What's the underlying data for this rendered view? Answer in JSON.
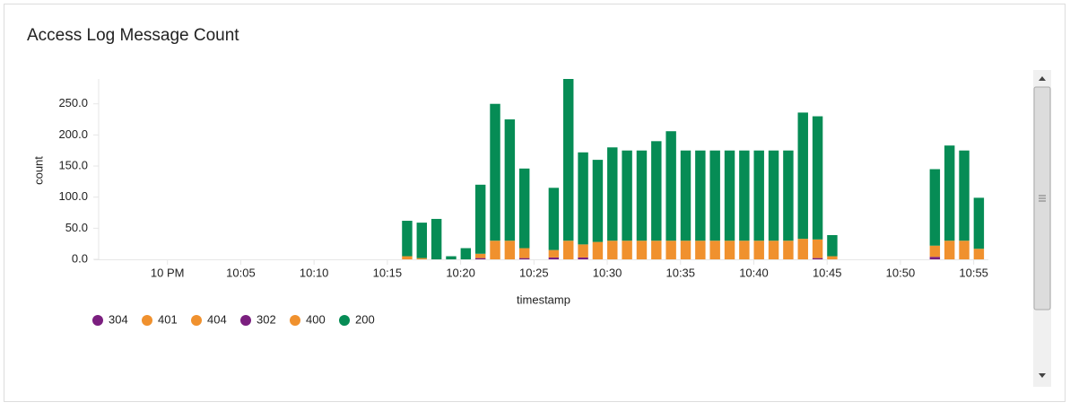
{
  "chart_data": {
    "type": "stacked-bar",
    "title": "Access Log Message Count",
    "x_label": "timestamp",
    "y_label": "count",
    "x": [
      "10:16",
      "10:17",
      "10:18",
      "10:19",
      "10:20",
      "10:21",
      "10:22",
      "10:23",
      "10:24",
      "10:26",
      "10:27",
      "10:28",
      "10:29",
      "10:30",
      "10:31",
      "10:32",
      "10:33",
      "10:34",
      "10:35",
      "10:36",
      "10:37",
      "10:38",
      "10:39",
      "10:40",
      "10:41",
      "10:42",
      "10:43",
      "10:44",
      "10:45",
      "10:52",
      "10:53",
      "10:54",
      "10:55"
    ],
    "series": [
      {
        "name": "304",
        "color": "#7b1f7f",
        "values": [
          0,
          0,
          0,
          0,
          0,
          2,
          0,
          0,
          2,
          3,
          0,
          3,
          0,
          0,
          0,
          0,
          0,
          0,
          0,
          0,
          0,
          0,
          0,
          0,
          0,
          0,
          0,
          2,
          0,
          4,
          0,
          0,
          0
        ]
      },
      {
        "name": "401",
        "color": "#f0912e",
        "values": [
          0,
          0,
          0,
          0,
          0,
          0,
          0,
          0,
          0,
          0,
          0,
          0,
          0,
          0,
          0,
          0,
          0,
          0,
          0,
          0,
          0,
          0,
          0,
          0,
          0,
          0,
          0,
          0,
          0,
          0,
          0,
          0,
          0
        ]
      },
      {
        "name": "404",
        "color": "#f0912e",
        "values": [
          0,
          0,
          0,
          0,
          0,
          0,
          0,
          0,
          0,
          0,
          0,
          0,
          0,
          0,
          0,
          0,
          0,
          0,
          0,
          0,
          0,
          0,
          0,
          0,
          0,
          0,
          0,
          0,
          0,
          0,
          0,
          0,
          0
        ]
      },
      {
        "name": "302",
        "color": "#7b1f7f",
        "values": [
          0,
          0,
          0,
          0,
          0,
          0,
          0,
          0,
          0,
          0,
          0,
          0,
          0,
          0,
          0,
          0,
          0,
          0,
          0,
          0,
          0,
          0,
          0,
          0,
          0,
          0,
          0,
          0,
          0,
          0,
          0,
          0,
          0
        ]
      },
      {
        "name": "400",
        "color": "#f0912e",
        "values": [
          5,
          2,
          0,
          0,
          0,
          7,
          30,
          30,
          16,
          12,
          30,
          21,
          28,
          30,
          30,
          30,
          30,
          30,
          30,
          30,
          30,
          30,
          30,
          30,
          30,
          30,
          33,
          30,
          5,
          18,
          30,
          30,
          17
        ]
      },
      {
        "name": "200",
        "color": "#068c55",
        "values": [
          57,
          57,
          65,
          5,
          18,
          111,
          220,
          195,
          128,
          100,
          260,
          148,
          132,
          150,
          145,
          145,
          160,
          176,
          145,
          145,
          145,
          145,
          145,
          145,
          145,
          145,
          203,
          198,
          34,
          123,
          153,
          145,
          82
        ]
      }
    ],
    "xlim": [
      "9:55",
      "10:56"
    ],
    "xticks": [
      {
        "value": "10:00",
        "label": "10 PM"
      },
      "10:05",
      "10:10",
      "10:15",
      "10:20",
      "10:25",
      "10:30",
      "10:35",
      "10:40",
      "10:45",
      "10:50",
      "10:55"
    ],
    "ylim": [
      0,
      290
    ],
    "yticks": [
      {
        "value": 0,
        "label": "0.0"
      },
      {
        "value": 50,
        "label": "50.0"
      },
      {
        "value": 100,
        "label": "100.0"
      },
      {
        "value": 150,
        "label": "150.0"
      },
      {
        "value": 200,
        "label": "200.0"
      },
      {
        "value": 250,
        "label": "250.0"
      }
    ]
  }
}
